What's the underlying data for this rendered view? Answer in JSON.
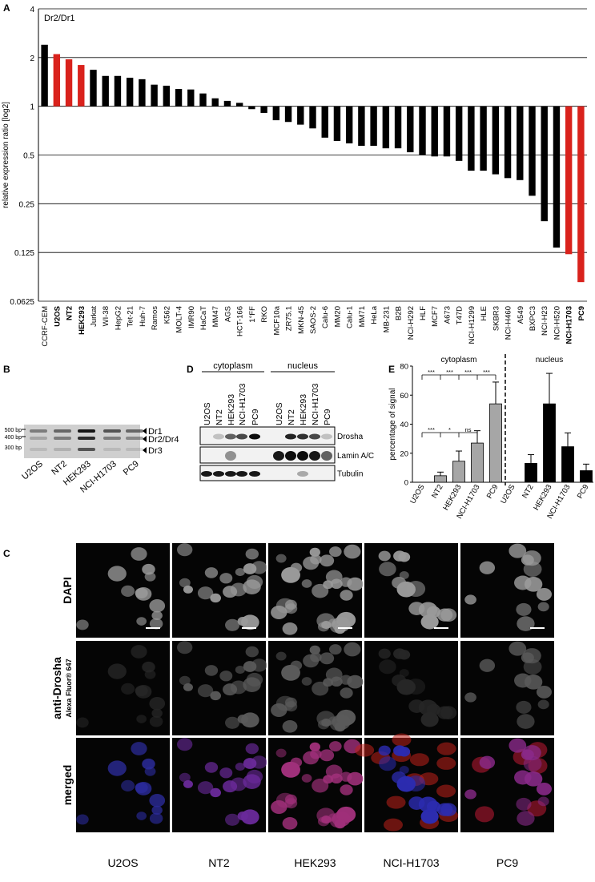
{
  "chart_data": [
    {
      "panel": "A",
      "type": "bar",
      "title": "Dr2/Dr1",
      "y_label": "relative expression ratio [log2]",
      "log_scale": 2,
      "categories": [
        "CCRF-CEM",
        "U2OS",
        "NT2",
        "HEK293",
        "Jurkat",
        "WI-38",
        "HepG2",
        "Tet-21",
        "Huh-7",
        "Ramos",
        "K562",
        "MOLT-4",
        "IMR90",
        "HaCaT",
        "MM47",
        "AGS",
        "HCT-166",
        "1°FF",
        "RKO",
        "MCF10a",
        "ZR75.1",
        "MKN-45",
        "SAOS-2",
        "Calu-6",
        "MM20",
        "Calu-1",
        "MM71",
        "HeLa",
        "MB-231",
        "B2B",
        "NCI-H292",
        "HLF",
        "MCF7",
        "A673",
        "T47D",
        "NCI-H1299",
        "HLE",
        "SKBR3",
        "NCI-H460",
        "A549",
        "BXPC3",
        "NCI-H23",
        "NCI-H520",
        "NCI-H1703",
        "PC9"
      ],
      "values": [
        2.4,
        2.1,
        1.95,
        1.8,
        1.68,
        1.54,
        1.54,
        1.5,
        1.47,
        1.36,
        1.34,
        1.28,
        1.27,
        1.2,
        1.12,
        1.08,
        1.05,
        0.96,
        0.91,
        0.82,
        0.8,
        0.77,
        0.73,
        0.64,
        0.61,
        0.59,
        0.57,
        0.57,
        0.55,
        0.55,
        0.52,
        0.5,
        0.49,
        0.49,
        0.46,
        0.4,
        0.4,
        0.38,
        0.36,
        0.35,
        0.28,
        0.195,
        0.134,
        0.122,
        0.082
      ],
      "colors": [
        "#000000",
        "#d9221c",
        "#d9221c",
        "#d9221c",
        "#000000",
        "#000000",
        "#000000",
        "#000000",
        "#000000",
        "#000000",
        "#000000",
        "#000000",
        "#000000",
        "#000000",
        "#000000",
        "#000000",
        "#000000",
        "#000000",
        "#000000",
        "#000000",
        "#000000",
        "#000000",
        "#000000",
        "#000000",
        "#000000",
        "#000000",
        "#000000",
        "#000000",
        "#000000",
        "#000000",
        "#000000",
        "#000000",
        "#000000",
        "#000000",
        "#000000",
        "#000000",
        "#000000",
        "#000000",
        "#000000",
        "#000000",
        "#000000",
        "#000000",
        "#000000",
        "#d9221c",
        "#d9221c"
      ],
      "ylim": [
        0.0625,
        4
      ],
      "yticks": [
        0.0625,
        0.125,
        0.25,
        0.5,
        1,
        2,
        4
      ],
      "grid": true
    },
    {
      "panel": "E",
      "type": "bar",
      "y_label": "percentage of signal",
      "categories": [
        "U2OS",
        "NT2",
        "HEK293",
        "NCI-H1703",
        "PC9"
      ],
      "series": [
        {
          "name": "cytoplasm",
          "color": "#a6a6a6",
          "values": [
            0,
            4.5,
            14.5,
            27,
            54
          ],
          "errors": [
            0,
            2.5,
            7,
            8.5,
            15
          ]
        },
        {
          "name": "nucleus",
          "color": "#000000",
          "values": [
            0,
            13,
            54,
            24.5,
            8
          ],
          "errors": [
            0,
            6,
            21,
            9.5,
            4.5
          ]
        }
      ],
      "annotations": [
        [
          "***",
          "***",
          "***",
          "***"
        ],
        [
          "***",
          "*",
          "ns"
        ]
      ],
      "ylim": [
        0,
        80
      ],
      "yticks": [
        0,
        20,
        40,
        60,
        80
      ]
    }
  ],
  "gel": {
    "panel": "B",
    "markers": [
      "500 bp",
      "400 bp",
      "300 bp"
    ],
    "bands": [
      "Dr1",
      "Dr2/Dr4",
      "Dr3"
    ],
    "lanes": [
      "U2OS",
      "NT2",
      "HEK293",
      "NCI-H1703",
      "PC9"
    ]
  },
  "blot": {
    "panel": "D",
    "fractions": [
      "cytoplasm",
      "nucleus"
    ],
    "lanes": [
      "U2OS",
      "NT2",
      "HEK293",
      "NCI-H1703",
      "PC9",
      "U2OS",
      "NT2",
      "HEK293",
      "NCI-H1703",
      "PC9"
    ],
    "proteins": [
      "Drosha",
      "Lamin A/C",
      "Tubulin"
    ]
  },
  "microscopy": {
    "panel": "C",
    "rows": [
      "DAPI",
      "anti-Drosha",
      "merged"
    ],
    "sublabel": "Alexa Fluor® 647",
    "columns": [
      "U2OS",
      "NT2",
      "HEK293",
      "NCI-H1703",
      "PC9"
    ]
  }
}
